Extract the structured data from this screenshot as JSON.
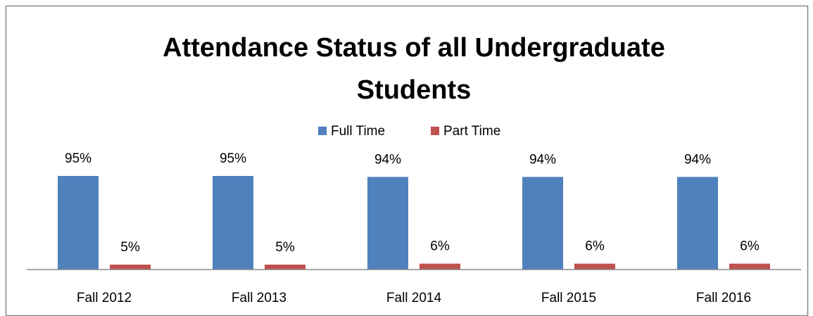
{
  "chart_data": {
    "type": "bar",
    "title": "Attendance Status of all Undergraduate Students",
    "categories": [
      "Fall 2012",
      "Fall 2013",
      "Fall 2014",
      "Fall 2015",
      "Fall 2016"
    ],
    "series": [
      {
        "name": "Full Time",
        "color": "#4f81bd",
        "values": [
          95,
          95,
          94,
          94,
          94
        ],
        "value_labels": [
          "95%",
          "95%",
          "94%",
          "94%",
          "94%"
        ]
      },
      {
        "name": "Part Time",
        "color": "#c0504d",
        "values": [
          5,
          5,
          6,
          6,
          6
        ],
        "value_labels": [
          "5%",
          "5%",
          "6%",
          "6%",
          "6%"
        ]
      }
    ],
    "ylim": [
      0,
      100
    ],
    "legend": "top"
  }
}
